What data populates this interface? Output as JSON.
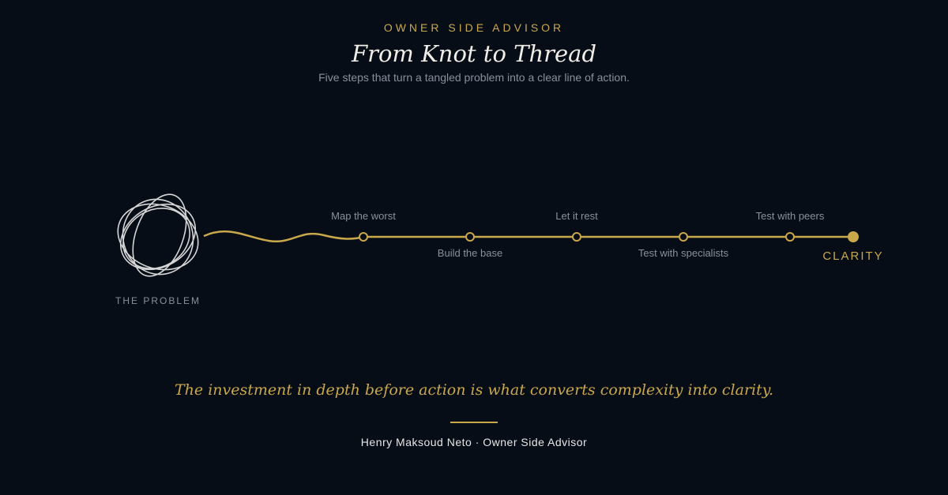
{
  "header": {
    "eyebrow": "OWNER SIDE ADVISOR",
    "title": "From Knot to Thread",
    "subtitle": "Five steps that turn a tangled problem into a clear line of action."
  },
  "diagram": {
    "start_label": "THE PROBLEM",
    "end_label": "CLARITY",
    "steps": [
      "Map the worst",
      "Build the base",
      "Let it rest",
      "Test with specialists",
      "Test with peers"
    ]
  },
  "quote": "The investment in depth before action is what converts complexity into clarity.",
  "signature": "Henry Maksoud Neto · Owner Side Advisor"
}
